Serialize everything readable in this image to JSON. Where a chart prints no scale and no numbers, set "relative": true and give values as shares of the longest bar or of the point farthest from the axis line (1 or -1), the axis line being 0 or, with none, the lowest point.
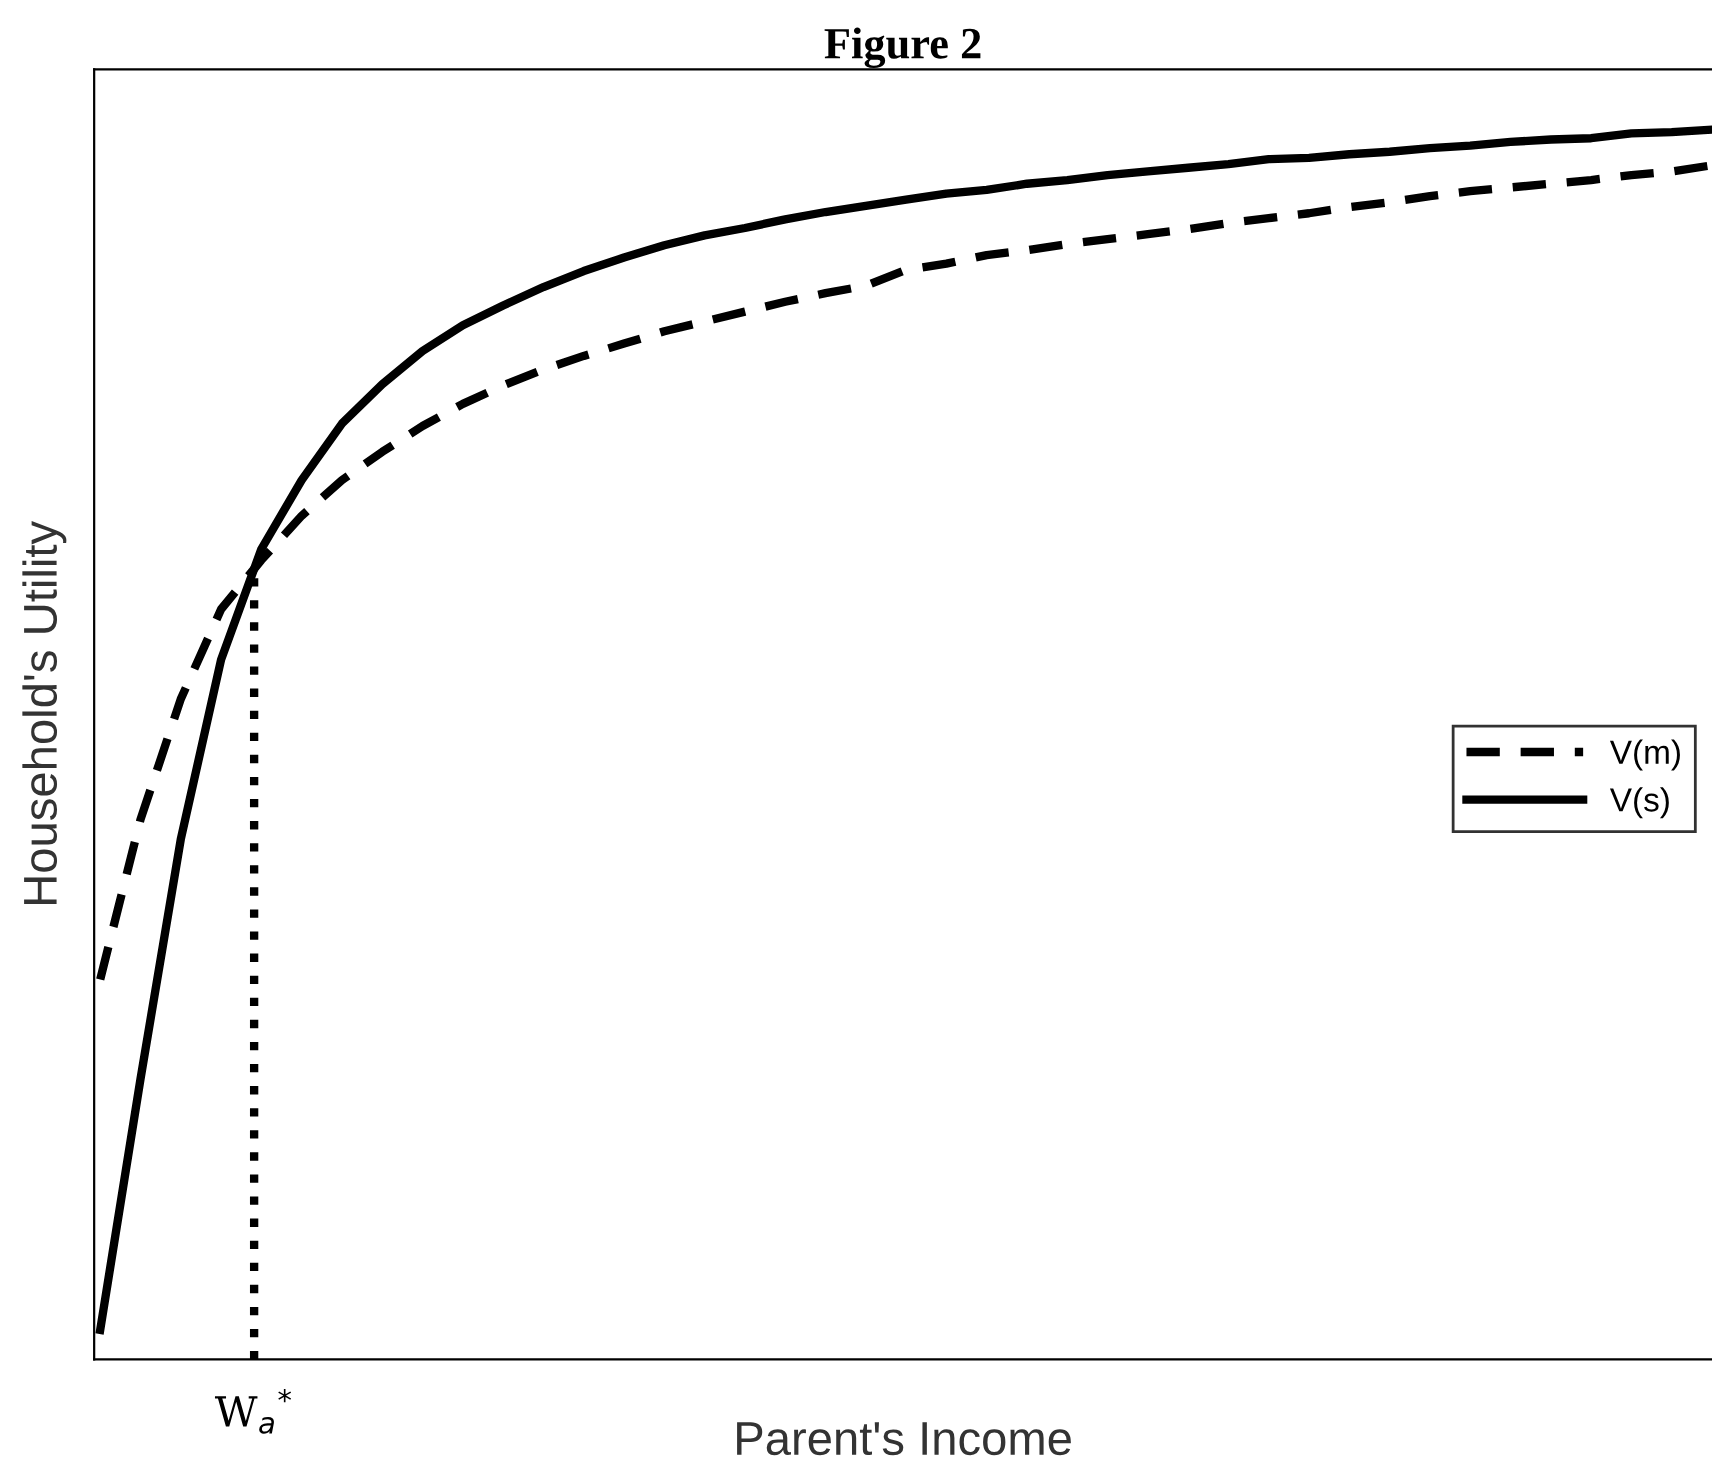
{
  "chart_data": {
    "type": "line",
    "title": "Figure 2",
    "xlabel": "Parent's Income",
    "ylabel": "Household's Utility",
    "relative": true,
    "categories": [
      null,
      null,
      null,
      null,
      null,
      null,
      null,
      null,
      null,
      null,
      null,
      null,
      null,
      null,
      null,
      null,
      null,
      null,
      null,
      null,
      null,
      null,
      null,
      null,
      null,
      null,
      null,
      null,
      null,
      null,
      null,
      null,
      null,
      null,
      null,
      null,
      null,
      null,
      null,
      null,
      null
    ],
    "series": [
      {
        "name": "V(m)",
        "color": "#000000",
        "line_style": "dashed",
        "values": [
          0.309,
          0.439,
          0.537,
          0.61,
          0.65,
          0.686,
          0.715,
          0.738,
          0.759,
          0.777,
          0.792,
          0.805,
          0.816,
          0.826,
          0.836,
          0.844,
          0.852,
          0.86,
          0.867,
          0.873,
          0.886,
          0.891,
          0.898,
          0.902,
          0.907,
          0.911,
          0.915,
          0.919,
          0.924,
          0.928,
          0.932,
          0.937,
          0.941,
          0.946,
          0.95,
          0.953,
          0.956,
          0.959,
          0.963,
          0.966,
          0.971
        ]
      },
      {
        "name": "V(s)",
        "color": "#000000",
        "line_style": "solid",
        "values": [
          0.024,
          0.228,
          0.423,
          0.569,
          0.659,
          0.715,
          0.761,
          0.793,
          0.82,
          0.841,
          0.857,
          0.872,
          0.885,
          0.896,
          0.906,
          0.914,
          0.92,
          0.927,
          0.933,
          0.938,
          0.943,
          0.948,
          0.951,
          0.956,
          0.959,
          0.963,
          0.966,
          0.969,
          0.972,
          0.976,
          0.977,
          0.98,
          0.982,
          0.985,
          0.987,
          0.99,
          0.992,
          0.993,
          0.997,
          0.998,
          1.0
        ]
      }
    ],
    "annotations": [
      "W$_{a}$$^{*}$"
    ],
    "legend": "right",
    "marker": "none"
  }
}
